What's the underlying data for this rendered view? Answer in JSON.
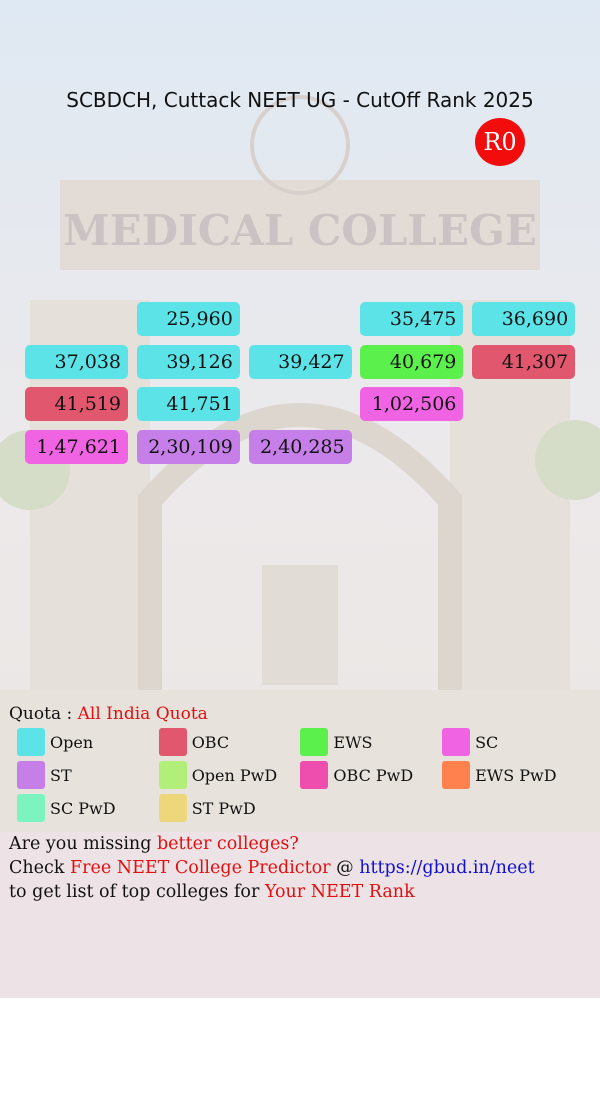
{
  "header": {
    "title": "SCBDCH, Cuttack NEET UG - CutOff Rank 2025",
    "round": "R0"
  },
  "ranks": {
    "rows": [
      [
        null,
        {
          "rank": "25,960",
          "quota": "Open"
        },
        null,
        {
          "rank": "35,475",
          "quota": "Open"
        },
        {
          "rank": "36,690",
          "quota": "Open"
        }
      ],
      [
        {
          "rank": "37,038",
          "quota": "Open"
        },
        {
          "rank": "39,126",
          "quota": "Open"
        },
        {
          "rank": "39,427",
          "quota": "Open"
        },
        {
          "rank": "40,679",
          "quota": "EWS"
        },
        {
          "rank": "41,307",
          "quota": "OBC"
        }
      ],
      [
        {
          "rank": "41,519",
          "quota": "OBC"
        },
        {
          "rank": "41,751",
          "quota": "Open"
        },
        null,
        {
          "rank": "1,02,506",
          "quota": "SC"
        },
        null
      ],
      [
        {
          "rank": "1,47,621",
          "quota": "SC"
        },
        {
          "rank": "2,30,109",
          "quota": "ST"
        },
        {
          "rank": "2,40,285",
          "quota": "ST"
        },
        null,
        null
      ]
    ]
  },
  "quota": {
    "label": "Quota :",
    "value": "All India Quota"
  },
  "legend": [
    {
      "name": "Open",
      "color": "#5ce3e8"
    },
    {
      "name": "OBC",
      "color": "#e0576e"
    },
    {
      "name": "EWS",
      "color": "#5cf04c"
    },
    {
      "name": "SC",
      "color": "#f064e4"
    },
    {
      "name": "ST",
      "color": "#c67fe8"
    },
    {
      "name": "Open PwD",
      "color": "#b2ef78"
    },
    {
      "name": "OBC PwD",
      "color": "#ee4fae"
    },
    {
      "name": "EWS PwD",
      "color": "#ff824e"
    },
    {
      "name": "SC PwD",
      "color": "#7df4c0"
    },
    {
      "name": "ST PwD",
      "color": "#eed77a"
    }
  ],
  "footer": {
    "lines": [
      [
        {
          "text": "Are you missing",
          "color": "#111111"
        },
        {
          "text": "better colleges?",
          "color": "#e01010"
        }
      ],
      [
        {
          "text": "Check",
          "color": "#111111"
        },
        {
          "text": "Free NEET College Predictor",
          "color": "#e01010"
        },
        {
          "text": "@",
          "color": "#111111"
        },
        {
          "text": "https://gbud.in/neet",
          "color": "#1010d0"
        }
      ],
      [
        {
          "text": "to get list of top colleges for",
          "color": "#111111"
        },
        {
          "text": "Your NEET Rank",
          "color": "#e01010"
        }
      ]
    ]
  }
}
